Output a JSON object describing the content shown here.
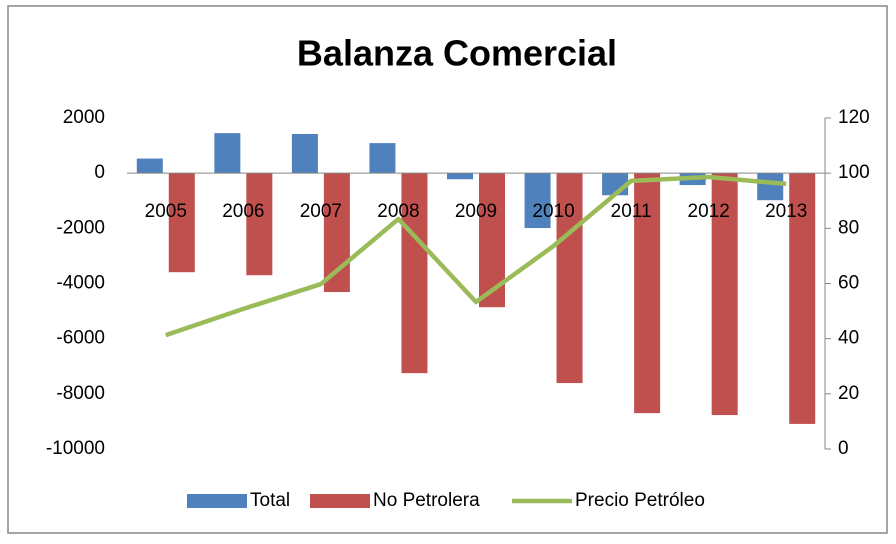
{
  "chart_data": {
    "type": "bar_line",
    "title": "Balanza Comercial",
    "categories": [
      "2005",
      "2006",
      "2007",
      "2008",
      "2009",
      "2010",
      "2011",
      "2012",
      "2013"
    ],
    "series": [
      {
        "name": "Total",
        "color": "#4f81bd",
        "values": [
          530,
          1450,
          1420,
          1090,
          -220,
          -1990,
          -800,
          -430,
          -980
        ]
      },
      {
        "name": "No Petrolera",
        "color": "#c0504d",
        "values": [
          -3590,
          -3700,
          -4310,
          -7250,
          -4860,
          -7610,
          -8700,
          -8770,
          -9090
        ]
      },
      {
        "name": "Precio Petróleo",
        "color": "#9bbb59",
        "type": "line",
        "axis": "y2",
        "values": [
          41.3,
          50.8,
          59.8,
          83.4,
          53.3,
          73.6,
          97.2,
          98.6,
          96.1
        ]
      }
    ],
    "ylim": [
      -10000,
      2000
    ],
    "yticks": [
      -10000,
      -8000,
      -6000,
      -4000,
      -2000,
      0,
      2000
    ],
    "y2lim": [
      0,
      120
    ],
    "y2ticks": [
      0,
      20,
      40,
      60,
      80,
      100,
      120
    ],
    "legend": "bottom"
  }
}
